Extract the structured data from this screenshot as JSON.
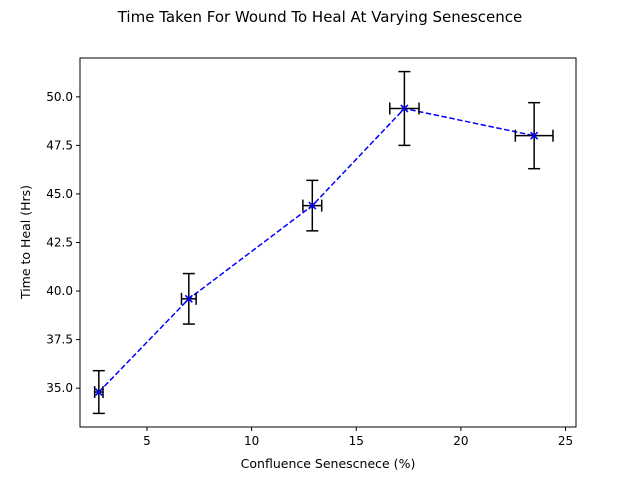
{
  "chart_data": {
    "type": "line",
    "title": "Time Taken For Wound To Heal At Varying Senescence",
    "xlabel": "Confluence Senescnece (%)",
    "ylabel": "Time to Heal (Hrs)",
    "xlim": [
      1.8,
      25.5
    ],
    "ylim": [
      33.0,
      52.0
    ],
    "xticks": [
      5,
      10,
      15,
      20,
      25
    ],
    "yticks": [
      35.0,
      37.5,
      40.0,
      42.5,
      45.0,
      47.5,
      50.0
    ],
    "grid": false,
    "series": [
      {
        "points": [
          {
            "x": 2.7,
            "y": 34.8,
            "xerr": 0.2,
            "yerr": 1.1
          },
          {
            "x": 7.0,
            "y": 39.6,
            "xerr": 0.35,
            "yerr": 1.3
          },
          {
            "x": 12.9,
            "y": 44.4,
            "xerr": 0.45,
            "yerr": 1.3
          },
          {
            "x": 17.3,
            "y": 49.4,
            "xerr": 0.7,
            "yerr": 1.9
          },
          {
            "x": 23.5,
            "y": 48.0,
            "xerr": 0.9,
            "yerr": 1.7
          }
        ],
        "line_color": "#0000ff",
        "line_style": "dashed",
        "marker": "x",
        "errorbar_color": "#000000"
      }
    ]
  }
}
